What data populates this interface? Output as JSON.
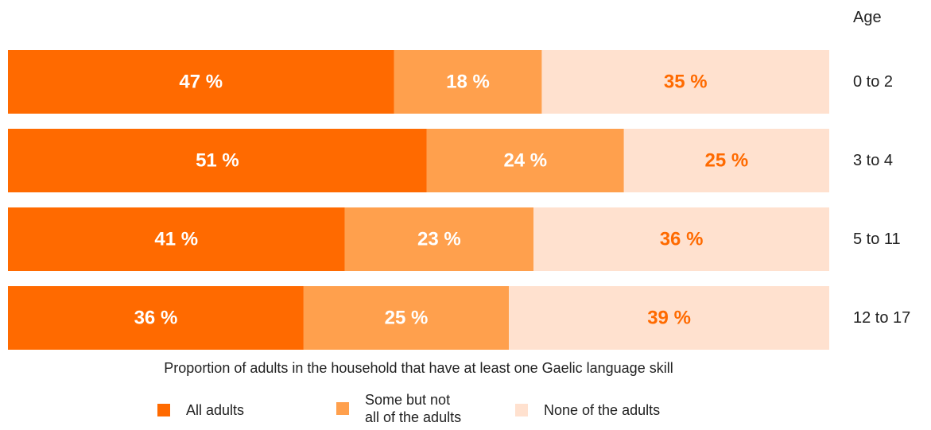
{
  "chart_data": {
    "type": "bar",
    "orientation": "horizontal",
    "stacked": true,
    "axis_title": "Age",
    "xlabel": "Proportion of adults in the household that have at least one Gaelic language skill",
    "categories": [
      "0 to 2",
      "3 to 4",
      "5 to 11",
      "12 to 17"
    ],
    "series": [
      {
        "name": "All adults",
        "values": [
          47,
          51,
          41,
          36
        ],
        "color": "#ff6a00",
        "label_color": "#ffffff"
      },
      {
        "name": "Some but not all of the adults",
        "values": [
          18,
          24,
          23,
          25
        ],
        "color": "#ffa04d",
        "label_color": "#ffffff"
      },
      {
        "name": "None of the adults",
        "values": [
          35,
          25,
          36,
          39
        ],
        "color": "#ffe1cf",
        "label_color": "#ff6a00"
      }
    ],
    "value_suffix": " %",
    "xlim": [
      0,
      100
    ],
    "grid": false,
    "legend_position": "bottom"
  },
  "legend": {
    "item_1": "All adults",
    "item_2_line_1": "Some but not",
    "item_2_line_2": "all of the adults",
    "item_3": "None of the adults"
  }
}
